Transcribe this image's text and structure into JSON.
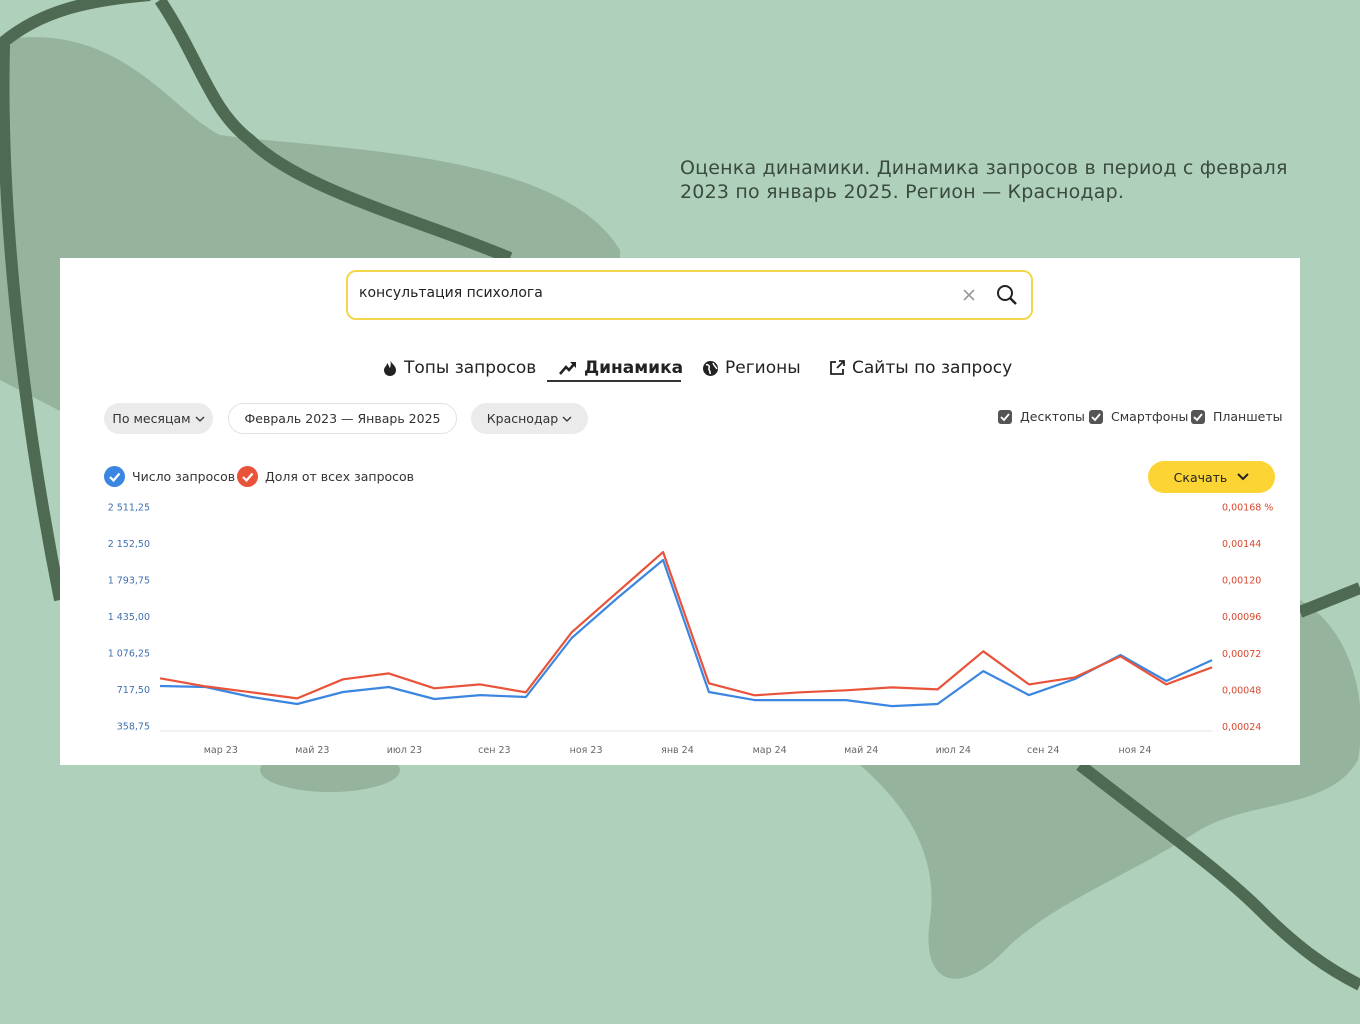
{
  "caption": "Оценка динамики. Динамика запросов в период с февраля 2023 по январь 2025. Регион — Краснодар.",
  "search": {
    "query": "консультация психолога"
  },
  "tabs": [
    "Топы запросов",
    "Динамика",
    "Регионы",
    "Сайты по запросу"
  ],
  "filters": {
    "grouping": "По месяцам",
    "range": "Февраль 2023 — Январь 2025",
    "region": "Краснодар"
  },
  "devices": [
    "Десктопы",
    "Смартфоны",
    "Планшеты"
  ],
  "download": "Скачать",
  "chart_data": {
    "type": "line",
    "categories": [
      null,
      "мар 23",
      null,
      "май 23",
      null,
      "июл 23",
      null,
      "сен 23",
      null,
      "ноя 23",
      null,
      "янв 24",
      null,
      "мар 24",
      null,
      "май 24",
      null,
      "июл 24",
      null,
      "сен 24",
      null,
      "ноя 24",
      null,
      null
    ],
    "series": [
      {
        "name": "Число запросов",
        "color": "#3b86e0",
        "values": [
          752,
          742,
          644,
          575,
          693,
          742,
          624,
          663,
          644,
          1224,
          1617,
          1990,
          693,
          614,
          614,
          614,
          555,
          575,
          899,
          663,
          821,
          1057,
          801,
          1007
        ]
      },
      {
        "name": "Доля от всех запросов",
        "color": "#e8533a",
        "axis": "y2",
        "values": [
          0.000556,
          0.000503,
          0.000464,
          0.000424,
          0.000549,
          0.000588,
          0.00049,
          0.000516,
          0.000464,
          0.000858,
          0.001121,
          0.001384,
          0.000523,
          0.000444,
          0.000464,
          0.000477,
          0.000496,
          0.000483,
          0.000733,
          0.000516,
          0.000562,
          0.0007,
          0.000516,
          0.000628
        ]
      }
    ],
    "ylim": [
      310,
      2511.25
    ],
    "yticks": [
      {
        "value": 358.75,
        "label": "358,75"
      },
      {
        "value": 717.5,
        "label": "717,50"
      },
      {
        "value": 1076.25,
        "label": "1 076,25"
      },
      {
        "value": 1435,
        "label": "1 435,00"
      },
      {
        "value": 1793.75,
        "label": "1 793,75"
      },
      {
        "value": 2152.5,
        "label": "2 152,50"
      },
      {
        "value": 2511.25,
        "label": "2 511,25"
      }
    ],
    "y2lim": [
      0.00021,
      0.00168
    ],
    "y2ticks": [
      {
        "value": 0.00024,
        "label": "0,00024"
      },
      {
        "value": 0.00048,
        "label": "0,00048"
      },
      {
        "value": 0.00072,
        "label": "0,00072"
      },
      {
        "value": 0.00096,
        "label": "0,00096"
      },
      {
        "value": 0.0012,
        "label": "0,00120"
      },
      {
        "value": 0.00144,
        "label": "0,00144"
      },
      {
        "value": 0.00168,
        "label": "0,00168 %"
      }
    ],
    "grid": false
  }
}
